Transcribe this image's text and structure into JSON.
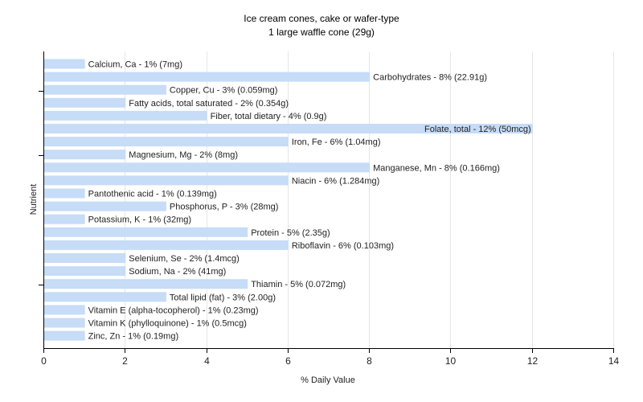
{
  "chart_data": {
    "type": "bar",
    "orientation": "horizontal",
    "title": "Ice cream cones, cake or wafer-type",
    "subtitle": "1 large waffle cone (29g)",
    "xlabel": "% Daily Value",
    "ylabel": "Nutrient",
    "xlim": [
      0,
      14
    ],
    "xticks": [
      0,
      2,
      4,
      6,
      8,
      10,
      12,
      14
    ],
    "grid": true,
    "bar_color": "#c6dcf7",
    "categories": [
      "Calcium, Ca",
      "Carbohydrates",
      "Copper, Cu",
      "Fatty acids, total saturated",
      "Fiber, total dietary",
      "Folate, total",
      "Iron, Fe",
      "Magnesium, Mg",
      "Manganese, Mn",
      "Niacin",
      "Pantothenic acid",
      "Phosphorus, P",
      "Potassium, K",
      "Protein",
      "Riboflavin",
      "Selenium, Se",
      "Sodium, Na",
      "Thiamin",
      "Total lipid (fat)",
      "Vitamin E (alpha-tocopherol)",
      "Vitamin K (phylloquinone)",
      "Zinc, Zn"
    ],
    "values": [
      1,
      8,
      3,
      2,
      4,
      12,
      6,
      2,
      8,
      6,
      1,
      3,
      1,
      5,
      6,
      2,
      2,
      5,
      3,
      1,
      1,
      1
    ],
    "bar_labels": [
      "Calcium, Ca - 1% (7mg)",
      "Carbohydrates - 8% (22.91g)",
      "Copper, Cu - 3% (0.059mg)",
      "Fatty acids, total saturated - 2% (0.354g)",
      "Fiber, total dietary - 4% (0.9g)",
      "Folate, total - 12% (50mcg)",
      "Iron, Fe - 6% (1.04mg)",
      "Magnesium, Mg - 2% (8mg)",
      "Manganese, Mn - 8% (0.166mg)",
      "Niacin - 6% (1.284mg)",
      "Pantothenic acid - 1% (0.139mg)",
      "Phosphorus, P - 3% (28mg)",
      "Potassium, K - 1% (32mg)",
      "Protein - 5% (2.35g)",
      "Riboflavin - 6% (0.103mg)",
      "Selenium, Se - 2% (1.4mcg)",
      "Sodium, Na - 2% (41mg)",
      "Thiamin - 5% (0.072mg)",
      "Total lipid (fat) - 3% (2.00g)",
      "Vitamin E (alpha-tocopherol) - 1% (0.23mg)",
      "Vitamin K (phylloquinone) - 1% (0.5mcg)",
      "Zinc, Zn - 1% (0.19mg)"
    ]
  }
}
